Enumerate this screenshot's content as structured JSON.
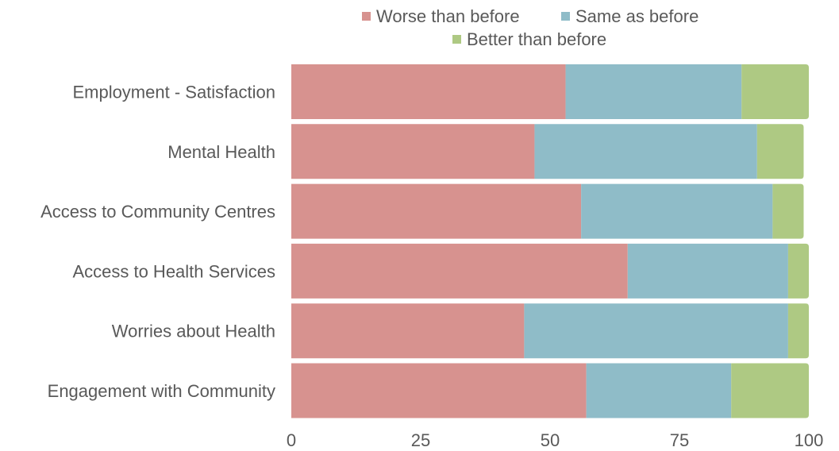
{
  "chart_data": {
    "type": "bar",
    "orientation": "horizontal",
    "stacked": true,
    "categories": [
      "Employment - Satisfaction",
      "Mental Health",
      "Access to Community Centres",
      "Access to Health Services",
      "Worries about Health",
      "Engagement with Community"
    ],
    "series": [
      {
        "name": "Worse than before",
        "color": "#d7928f",
        "values": [
          53,
          47,
          56,
          65,
          45,
          57
        ]
      },
      {
        "name": "Same as before",
        "color": "#8fbcc8",
        "values": [
          34,
          43,
          37,
          31,
          51,
          28
        ]
      },
      {
        "name": "Better than before",
        "color": "#aec983",
        "values": [
          13,
          9,
          6,
          4,
          4,
          15
        ]
      }
    ],
    "xlim": [
      0,
      100
    ],
    "xticks": [
      "0",
      "25",
      "50",
      "75",
      "100"
    ],
    "grid": false,
    "legend_position": "top"
  }
}
